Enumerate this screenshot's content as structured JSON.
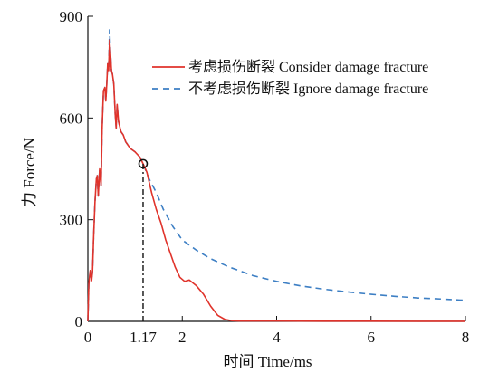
{
  "chart_data": {
    "type": "line",
    "xlabel": "时间 Time/ms",
    "ylabel": "力 Force/N",
    "xlim": [
      0,
      8
    ],
    "ylim": [
      0,
      900
    ],
    "x_ticks": [
      {
        "value": 0,
        "label": "0"
      },
      {
        "value": 1.17,
        "label": "1.17"
      },
      {
        "value": 2,
        "label": "2"
      },
      {
        "value": 4,
        "label": "4"
      },
      {
        "value": 6,
        "label": "6"
      },
      {
        "value": 8,
        "label": "8"
      }
    ],
    "y_ticks": [
      {
        "value": 0,
        "label": "0"
      },
      {
        "value": 300,
        "label": "300"
      },
      {
        "value": 600,
        "label": "600"
      },
      {
        "value": 900,
        "label": "900"
      }
    ],
    "legend_position": "top-right",
    "grid": false,
    "series": [
      {
        "name": "考虑损伤断裂 Consider damage fracture",
        "color": "#e0332b",
        "style": "solid",
        "points": [
          [
            0,
            0
          ],
          [
            0.02,
            110
          ],
          [
            0.05,
            150
          ],
          [
            0.08,
            120
          ],
          [
            0.1,
            150
          ],
          [
            0.12,
            240
          ],
          [
            0.15,
            350
          ],
          [
            0.18,
            420
          ],
          [
            0.2,
            430
          ],
          [
            0.22,
            370
          ],
          [
            0.25,
            450
          ],
          [
            0.28,
            400
          ],
          [
            0.3,
            560
          ],
          [
            0.33,
            680
          ],
          [
            0.36,
            690
          ],
          [
            0.38,
            650
          ],
          [
            0.4,
            700
          ],
          [
            0.42,
            760
          ],
          [
            0.44,
            740
          ],
          [
            0.46,
            830
          ],
          [
            0.48,
            790
          ],
          [
            0.5,
            740
          ],
          [
            0.52,
            730
          ],
          [
            0.55,
            700
          ],
          [
            0.58,
            610
          ],
          [
            0.6,
            570
          ],
          [
            0.62,
            640
          ],
          [
            0.65,
            590
          ],
          [
            0.7,
            560
          ],
          [
            0.75,
            550
          ],
          [
            0.8,
            530
          ],
          [
            0.9,
            510
          ],
          [
            1.0,
            500
          ],
          [
            1.1,
            485
          ],
          [
            1.17,
            465
          ],
          [
            1.25,
            440
          ],
          [
            1.35,
            380
          ],
          [
            1.45,
            330
          ],
          [
            1.55,
            290
          ],
          [
            1.65,
            240
          ],
          [
            1.75,
            200
          ],
          [
            1.85,
            160
          ],
          [
            1.95,
            130
          ],
          [
            2.05,
            118
          ],
          [
            2.15,
            122
          ],
          [
            2.3,
            105
          ],
          [
            2.45,
            80
          ],
          [
            2.6,
            45
          ],
          [
            2.75,
            18
          ],
          [
            2.9,
            6
          ],
          [
            3.05,
            2
          ],
          [
            3.2,
            1
          ],
          [
            4,
            1
          ],
          [
            5,
            0.5
          ],
          [
            6,
            0.5
          ],
          [
            7,
            0.3
          ],
          [
            8,
            0.3
          ]
        ]
      },
      {
        "name": "不考虑损伤断裂 Ignore damage fracture",
        "color": "#3d7fc4",
        "style": "dashed",
        "points": [
          [
            0,
            0
          ],
          [
            0.02,
            110
          ],
          [
            0.05,
            150
          ],
          [
            0.08,
            120
          ],
          [
            0.1,
            150
          ],
          [
            0.12,
            240
          ],
          [
            0.15,
            350
          ],
          [
            0.18,
            420
          ],
          [
            0.2,
            430
          ],
          [
            0.22,
            370
          ],
          [
            0.25,
            450
          ],
          [
            0.28,
            400
          ],
          [
            0.3,
            560
          ],
          [
            0.33,
            680
          ],
          [
            0.36,
            690
          ],
          [
            0.38,
            650
          ],
          [
            0.4,
            700
          ],
          [
            0.42,
            760
          ],
          [
            0.44,
            740
          ],
          [
            0.46,
            860
          ],
          [
            0.48,
            790
          ],
          [
            0.5,
            740
          ],
          [
            0.52,
            730
          ],
          [
            0.55,
            700
          ],
          [
            0.58,
            610
          ],
          [
            0.6,
            570
          ],
          [
            0.62,
            640
          ],
          [
            0.65,
            590
          ],
          [
            0.7,
            560
          ],
          [
            0.75,
            550
          ],
          [
            0.8,
            530
          ],
          [
            0.9,
            510
          ],
          [
            1.0,
            500
          ],
          [
            1.1,
            485
          ],
          [
            1.17,
            465
          ],
          [
            1.3,
            420
          ],
          [
            1.45,
            380
          ],
          [
            1.6,
            330
          ],
          [
            1.8,
            280
          ],
          [
            2.0,
            240
          ],
          [
            2.3,
            210
          ],
          [
            2.6,
            185
          ],
          [
            3.0,
            160
          ],
          [
            3.5,
            135
          ],
          [
            4.0,
            118
          ],
          [
            4.5,
            105
          ],
          [
            5.0,
            95
          ],
          [
            5.5,
            87
          ],
          [
            6.0,
            80
          ],
          [
            6.5,
            74
          ],
          [
            7.0,
            69
          ],
          [
            7.5,
            66
          ],
          [
            8.0,
            62
          ]
        ]
      }
    ],
    "annotations": [
      {
        "type": "circle-marker",
        "x": 1.17,
        "y": 465
      },
      {
        "type": "vertical-dashdot-line",
        "x": 1.17,
        "y_from": 0,
        "y_to": 465
      }
    ]
  }
}
